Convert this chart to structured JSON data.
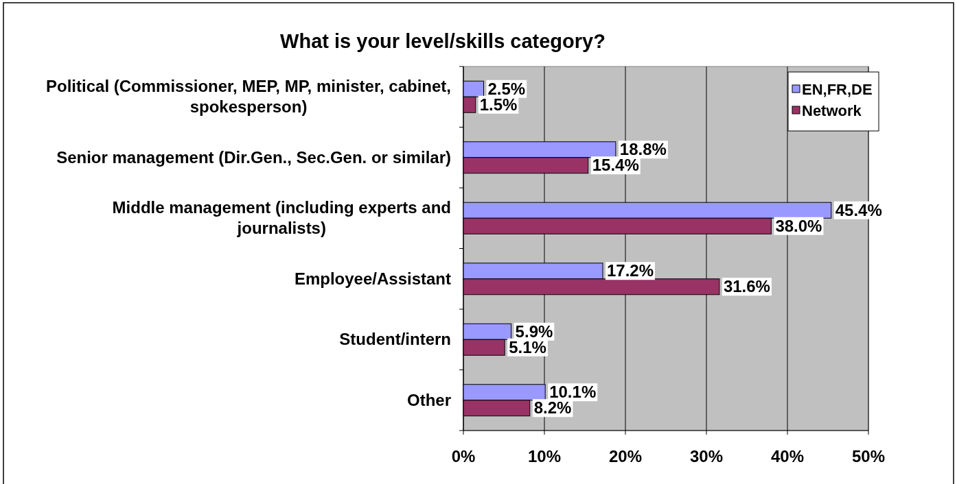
{
  "chart_data": {
    "type": "bar",
    "orientation": "horizontal",
    "title": "What is your level/skills category?",
    "categories": [
      "Political (Commissioner, MEP, MP, minister, cabinet, spokesperson)",
      "Senior management (Dir.Gen., Sec.Gen. or similar)",
      "Middle management (including experts and journalists)",
      "Employee/Assistant",
      "Student/intern",
      "Other"
    ],
    "series": [
      {
        "name": "EN,FR,DE",
        "color": "#9999ff",
        "values": [
          2.5,
          18.8,
          45.4,
          17.2,
          5.9,
          10.1
        ],
        "value_labels": [
          "2.5%",
          "18.8%",
          "45.4%",
          "17.2%",
          "5.9%",
          "10.1%"
        ]
      },
      {
        "name": "Network",
        "color": "#993366",
        "values": [
          1.5,
          15.4,
          38.0,
          31.6,
          5.1,
          8.2
        ],
        "value_labels": [
          "1.5%",
          "15.4%",
          "38.0%",
          "31.6%",
          "5.1%",
          "8.2%"
        ]
      }
    ],
    "xlim": [
      0,
      50
    ],
    "xticks": [
      {
        "value": 0,
        "label": "0%"
      },
      {
        "value": 10,
        "label": "10%"
      },
      {
        "value": 20,
        "label": "20%"
      },
      {
        "value": 30,
        "label": "30%"
      },
      {
        "value": 40,
        "label": "40%"
      },
      {
        "value": 50,
        "label": "50%"
      }
    ],
    "grid": "x",
    "legend": "top right"
  }
}
